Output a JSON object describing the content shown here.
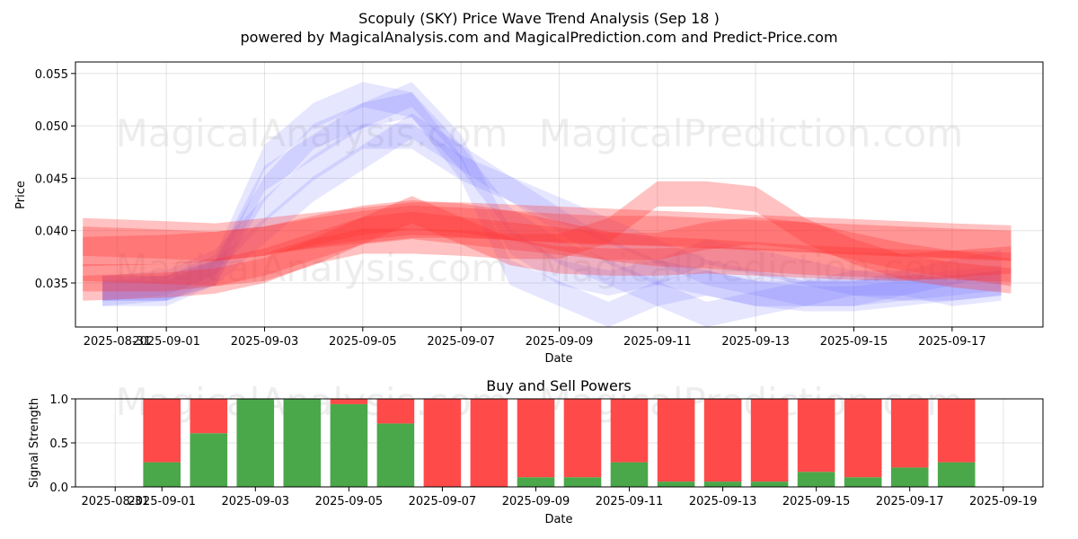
{
  "title": "Scopuly (SKY) Price Wave Trend Analysis (Sep 18 )",
  "subtitle": "powered by MagicalAnalysis.com and MagicalPrediction.com and Predict-Price.com",
  "watermarks": [
    "MagicalAnalysis.com",
    "MagicalPrediction.com"
  ],
  "colors": {
    "buy": "#4aa84a",
    "sell": "#ff4a4a",
    "blue_wave": "#6464ff",
    "red_wave": "#ff3333"
  },
  "chart_data": [
    {
      "type": "area",
      "title": "",
      "xlabel": "Date",
      "ylabel": "Price",
      "xlim": [
        -0.85,
        18.85
      ],
      "ylim": [
        0.0308,
        0.0561
      ],
      "grid": true,
      "x_ticks": [
        {
          "x": 0,
          "label": "2025-08-31"
        },
        {
          "x": 1,
          "label": "2025-09-01"
        },
        {
          "x": 3,
          "label": "2025-09-03"
        },
        {
          "x": 5,
          "label": "2025-09-05"
        },
        {
          "x": 7,
          "label": "2025-09-07"
        },
        {
          "x": 9,
          "label": "2025-09-09"
        },
        {
          "x": 11,
          "label": "2025-09-11"
        },
        {
          "x": 13,
          "label": "2025-09-13"
        },
        {
          "x": 15,
          "label": "2025-09-15"
        },
        {
          "x": 17,
          "label": "2025-09-17"
        }
      ],
      "y_ticks": [
        {
          "y": 0.035,
          "label": "0.035"
        },
        {
          "y": 0.04,
          "label": "0.040"
        },
        {
          "y": 0.045,
          "label": "0.045"
        },
        {
          "y": 0.05,
          "label": "0.050"
        },
        {
          "y": 0.055,
          "label": "0.055"
        }
      ],
      "series": [
        {
          "name": "blue-wave-1",
          "color": "blue",
          "x": [
            -0.3,
            1,
            2,
            3,
            4,
            5,
            6,
            7,
            8,
            9,
            10,
            11,
            12,
            13,
            14,
            15,
            16,
            17,
            18
          ],
          "center": [
            0.0345,
            0.0345,
            0.0365,
            0.047,
            0.051,
            0.053,
            0.052,
            0.046,
            0.036,
            0.034,
            0.032,
            0.034,
            0.035,
            0.034,
            0.034,
            0.034,
            0.035,
            0.036,
            0.037
          ],
          "half_width": 0.0012
        },
        {
          "name": "blue-wave-2",
          "color": "blue",
          "x": [
            -0.3,
            1,
            2,
            3,
            4,
            5,
            6,
            7,
            8,
            9,
            10,
            11,
            12,
            13,
            14,
            15,
            16,
            17,
            18
          ],
          "center": [
            0.034,
            0.034,
            0.036,
            0.044,
            0.049,
            0.051,
            0.052,
            0.047,
            0.041,
            0.038,
            0.036,
            0.034,
            0.032,
            0.033,
            0.034,
            0.035,
            0.035,
            0.034,
            0.0345
          ],
          "half_width": 0.0012
        },
        {
          "name": "blue-wave-3",
          "color": "blue",
          "x": [
            -0.3,
            1,
            2,
            3,
            4,
            5,
            6,
            7,
            8,
            9,
            10,
            11,
            12,
            13,
            14,
            15,
            16,
            17,
            18
          ],
          "center": [
            0.0345,
            0.035,
            0.037,
            0.042,
            0.046,
            0.049,
            0.049,
            0.046,
            0.044,
            0.042,
            0.04,
            0.038,
            0.036,
            0.035,
            0.034,
            0.034,
            0.0345,
            0.035,
            0.0355
          ],
          "half_width": 0.0012
        },
        {
          "name": "blue-wave-4",
          "color": "blue",
          "x": [
            -0.3,
            1,
            2,
            3,
            4,
            5,
            6,
            7,
            8,
            9,
            10,
            11,
            12,
            13,
            14,
            15,
            16,
            17,
            18
          ],
          "center": [
            0.034,
            0.0345,
            0.036,
            0.04,
            0.044,
            0.047,
            0.05,
            0.047,
            0.044,
            0.041,
            0.038,
            0.036,
            0.035,
            0.034,
            0.0335,
            0.0335,
            0.034,
            0.0345,
            0.035
          ],
          "half_width": 0.0012
        },
        {
          "name": "blue-wave-5",
          "color": "blue",
          "x": [
            -0.3,
            1,
            2,
            3,
            4,
            5,
            6,
            7,
            8,
            9,
            10,
            11,
            12,
            13,
            14,
            15,
            16,
            17,
            18
          ],
          "center": [
            0.0345,
            0.0345,
            0.036,
            0.045,
            0.048,
            0.051,
            0.053,
            0.048,
            0.039,
            0.036,
            0.035,
            0.036,
            0.038,
            0.037,
            0.036,
            0.035,
            0.0345,
            0.0345,
            0.035
          ],
          "half_width": 0.0012
        },
        {
          "name": "red-wave-1",
          "color": "red",
          "x": [
            -0.7,
            1,
            2,
            3,
            4,
            5,
            6,
            7,
            8,
            9,
            10,
            11,
            12,
            13,
            14,
            15,
            16,
            17,
            18.2
          ],
          "center": [
            0.038,
            0.0382,
            0.0385,
            0.039,
            0.04,
            0.041,
            0.0415,
            0.0412,
            0.0405,
            0.0395,
            0.0385,
            0.038,
            0.0378,
            0.0375,
            0.0372,
            0.037,
            0.0368,
            0.0367,
            0.0365
          ],
          "half_width": 0.0014
        },
        {
          "name": "red-wave-2",
          "color": "red",
          "x": [
            -0.7,
            1,
            2,
            3,
            4,
            5,
            6,
            7,
            8,
            9,
            10,
            11,
            12,
            13,
            14,
            15,
            16,
            17,
            18.2
          ],
          "center": [
            0.039,
            0.0387,
            0.0385,
            0.039,
            0.0398,
            0.0405,
            0.041,
            0.0408,
            0.0405,
            0.0402,
            0.04,
            0.04,
            0.0398,
            0.0396,
            0.0394,
            0.0392,
            0.039,
            0.0388,
            0.0386
          ],
          "half_width": 0.0014
        },
        {
          "name": "red-wave-3",
          "color": "red",
          "x": [
            -0.7,
            1,
            2,
            3,
            4,
            5,
            6,
            7,
            8,
            9,
            10,
            11,
            12,
            13,
            14,
            15,
            16,
            17,
            18.2
          ],
          "center": [
            0.0345,
            0.0348,
            0.0352,
            0.0362,
            0.038,
            0.039,
            0.039,
            0.0388,
            0.0385,
            0.0385,
            0.04,
            0.0435,
            0.0435,
            0.043,
            0.04,
            0.038,
            0.0365,
            0.0358,
            0.0352
          ],
          "half_width": 0.0012
        },
        {
          "name": "red-wave-4",
          "color": "red",
          "x": [
            -0.7,
            1,
            2,
            3,
            4,
            5,
            6,
            7,
            8,
            9,
            10,
            11,
            12,
            13,
            14,
            15,
            16,
            17,
            18.2
          ],
          "center": [
            0.0355,
            0.0355,
            0.036,
            0.037,
            0.0385,
            0.04,
            0.042,
            0.04,
            0.038,
            0.0372,
            0.037,
            0.037,
            0.0372,
            0.037,
            0.0368,
            0.0366,
            0.0365,
            0.0368,
            0.0372
          ],
          "half_width": 0.0013
        },
        {
          "name": "red-wave-5",
          "color": "red",
          "x": [
            -0.7,
            1,
            2,
            3,
            4,
            5,
            6,
            7,
            8,
            9,
            10,
            11,
            12,
            13,
            14,
            15,
            16,
            17,
            18.2
          ],
          "center": [
            0.0365,
            0.0362,
            0.036,
            0.0365,
            0.038,
            0.04,
            0.0405,
            0.04,
            0.0395,
            0.039,
            0.0385,
            0.0385,
            0.0395,
            0.04,
            0.0395,
            0.0385,
            0.0375,
            0.0368,
            0.036
          ],
          "half_width": 0.0013
        },
        {
          "name": "red-wave-6",
          "color": "red",
          "x": [
            -0.7,
            1,
            2,
            3,
            4,
            5,
            6,
            7,
            8,
            9,
            10,
            11,
            12,
            13,
            14,
            15,
            16,
            17,
            18.2
          ],
          "center": [
            0.0395,
            0.0392,
            0.039,
            0.0395,
            0.04,
            0.0405,
            0.041,
            0.041,
            0.0408,
            0.0406,
            0.0404,
            0.0402,
            0.04,
            0.0398,
            0.0396,
            0.0394,
            0.0392,
            0.039,
            0.0388
          ],
          "half_width": 0.0017
        }
      ]
    },
    {
      "type": "bar",
      "title": "Buy and Sell Powers",
      "xlabel": "Date",
      "ylabel": "Signal Strength",
      "xlim": [
        -0.85,
        19.85
      ],
      "ylim": [
        0,
        1.0
      ],
      "grid": true,
      "x_ticks": [
        {
          "x": 0,
          "label": "2025-08-31"
        },
        {
          "x": 1,
          "label": "2025-09-01"
        },
        {
          "x": 3,
          "label": "2025-09-03"
        },
        {
          "x": 5,
          "label": "2025-09-05"
        },
        {
          "x": 7,
          "label": "2025-09-07"
        },
        {
          "x": 9,
          "label": "2025-09-09"
        },
        {
          "x": 11,
          "label": "2025-09-11"
        },
        {
          "x": 13,
          "label": "2025-09-13"
        },
        {
          "x": 15,
          "label": "2025-09-15"
        },
        {
          "x": 17,
          "label": "2025-09-17"
        },
        {
          "x": 19,
          "label": "2025-09-19"
        }
      ],
      "y_ticks": [
        {
          "y": 0,
          "label": "0.0"
        },
        {
          "y": 0.5,
          "label": "0.5"
        },
        {
          "y": 1.0,
          "label": "1.0"
        }
      ],
      "x": [
        1,
        2,
        3,
        4,
        5,
        6,
        7,
        8,
        9,
        10,
        11,
        12,
        13,
        14,
        15,
        16,
        17,
        18
      ],
      "series": [
        {
          "name": "Buy",
          "color": "green",
          "values": [
            0.28,
            0.61,
            1.0,
            1.0,
            0.94,
            0.72,
            0.0,
            0.0,
            0.11,
            0.11,
            0.28,
            0.06,
            0.06,
            0.06,
            0.17,
            0.11,
            0.22,
            0.28
          ]
        },
        {
          "name": "Sell",
          "color": "red",
          "values": [
            0.72,
            0.39,
            0.0,
            0.0,
            0.06,
            0.28,
            1.0,
            1.0,
            0.89,
            0.89,
            0.72,
            0.94,
            0.94,
            0.94,
            0.83,
            0.89,
            0.78,
            0.72
          ]
        }
      ]
    }
  ]
}
